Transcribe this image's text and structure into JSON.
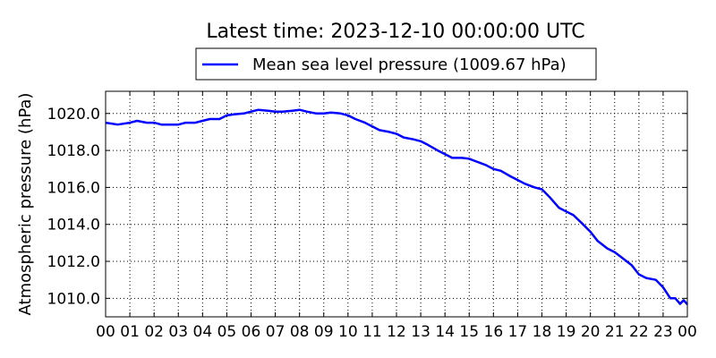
{
  "chart_data": {
    "type": "line",
    "title": "Latest time: 2023-12-10 00:00:00 UTC",
    "xlabel": "",
    "ylabel": "Atmospheric pressure (hPa)",
    "xlim": [
      0,
      24
    ],
    "ylim": [
      1009.0,
      1021.2
    ],
    "grid": true,
    "grid_style": "dotted",
    "legend_position": "top-center",
    "x_tick_labels": [
      "00",
      "01",
      "02",
      "03",
      "04",
      "05",
      "06",
      "07",
      "08",
      "09",
      "10",
      "11",
      "12",
      "13",
      "14",
      "15",
      "16",
      "17",
      "18",
      "19",
      "20",
      "21",
      "22",
      "23",
      "00"
    ],
    "y_ticks": [
      1010.0,
      1012.0,
      1014.0,
      1016.0,
      1018.0,
      1020.0
    ],
    "y_tick_labels": [
      "1010.0",
      "1012.0",
      "1014.0",
      "1016.0",
      "1018.0",
      "1020.0"
    ],
    "series": [
      {
        "name": "Mean sea level pressure (1009.67 hPa)",
        "color": "#0000ff",
        "points": [
          [
            0.0,
            1019.5
          ],
          [
            0.5,
            1019.4
          ],
          [
            1.0,
            1019.5
          ],
          [
            1.3,
            1019.6
          ],
          [
            1.7,
            1019.5
          ],
          [
            2.0,
            1019.5
          ],
          [
            2.3,
            1019.4
          ],
          [
            2.7,
            1019.4
          ],
          [
            3.0,
            1019.4
          ],
          [
            3.3,
            1019.5
          ],
          [
            3.7,
            1019.5
          ],
          [
            4.0,
            1019.6
          ],
          [
            4.3,
            1019.7
          ],
          [
            4.7,
            1019.7
          ],
          [
            5.0,
            1019.9
          ],
          [
            5.3,
            1019.95
          ],
          [
            5.7,
            1020.0
          ],
          [
            6.0,
            1020.1
          ],
          [
            6.3,
            1020.2
          ],
          [
            6.7,
            1020.15
          ],
          [
            7.0,
            1020.1
          ],
          [
            7.3,
            1020.1
          ],
          [
            7.7,
            1020.15
          ],
          [
            8.0,
            1020.2
          ],
          [
            8.3,
            1020.1
          ],
          [
            8.7,
            1020.0
          ],
          [
            9.0,
            1020.0
          ],
          [
            9.3,
            1020.05
          ],
          [
            9.7,
            1020.0
          ],
          [
            10.0,
            1019.9
          ],
          [
            10.3,
            1019.7
          ],
          [
            10.7,
            1019.5
          ],
          [
            11.0,
            1019.3
          ],
          [
            11.3,
            1019.1
          ],
          [
            11.7,
            1019.0
          ],
          [
            12.0,
            1018.9
          ],
          [
            12.3,
            1018.7
          ],
          [
            12.7,
            1018.6
          ],
          [
            13.0,
            1018.5
          ],
          [
            13.3,
            1018.3
          ],
          [
            13.7,
            1018.0
          ],
          [
            14.0,
            1017.8
          ],
          [
            14.3,
            1017.6
          ],
          [
            14.7,
            1017.6
          ],
          [
            15.0,
            1017.55
          ],
          [
            15.3,
            1017.4
          ],
          [
            15.7,
            1017.2
          ],
          [
            16.0,
            1017.0
          ],
          [
            16.3,
            1016.9
          ],
          [
            16.7,
            1016.6
          ],
          [
            17.0,
            1016.4
          ],
          [
            17.3,
            1016.2
          ],
          [
            17.7,
            1016.0
          ],
          [
            18.0,
            1015.9
          ],
          [
            18.3,
            1015.5
          ],
          [
            18.7,
            1014.9
          ],
          [
            19.0,
            1014.7
          ],
          [
            19.3,
            1014.5
          ],
          [
            19.7,
            1014.0
          ],
          [
            20.0,
            1013.6
          ],
          [
            20.3,
            1013.1
          ],
          [
            20.7,
            1012.7
          ],
          [
            21.0,
            1012.5
          ],
          [
            21.3,
            1012.2
          ],
          [
            21.7,
            1011.8
          ],
          [
            22.0,
            1011.3
          ],
          [
            22.3,
            1011.1
          ],
          [
            22.7,
            1011.0
          ],
          [
            23.0,
            1010.6
          ],
          [
            23.3,
            1010.0
          ],
          [
            23.5,
            1010.0
          ],
          [
            23.7,
            1009.7
          ],
          [
            23.85,
            1009.9
          ],
          [
            24.0,
            1009.67
          ]
        ]
      }
    ]
  }
}
